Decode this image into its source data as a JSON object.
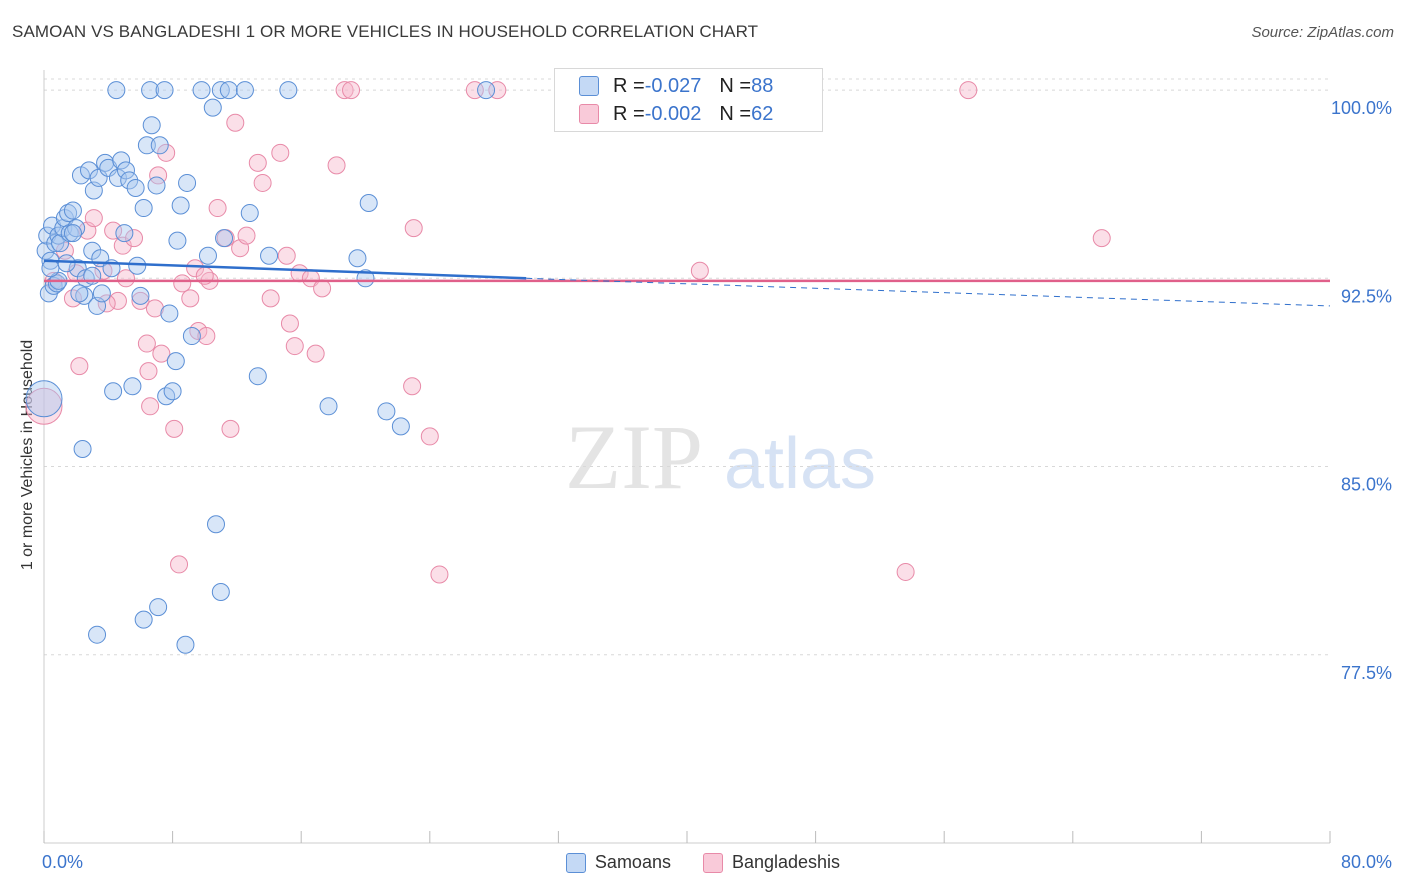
{
  "title": "SAMOAN VS BANGLADESHI 1 OR MORE VEHICLES IN HOUSEHOLD CORRELATION CHART",
  "source": "Source: ZipAtlas.com",
  "watermark": {
    "zip": "ZIP",
    "atlas": "atlas"
  },
  "legend_top": {
    "rows": [
      {
        "r_label": "R = ",
        "r_value": "-0.027",
        "n_label": "N = ",
        "n_value": "88"
      },
      {
        "r_label": "R = ",
        "r_value": "-0.002",
        "n_label": "N = ",
        "n_value": "62"
      }
    ]
  },
  "legend_bottom": {
    "samoans": "Samoans",
    "bangladeshis": "Bangladeshis"
  },
  "colors": {
    "samoan_fill": "#a9c8f0",
    "samoan_stroke": "#5b8fd6",
    "samoan_line": "#2f6fcc",
    "bangla_fill": "#f7b8cc",
    "bangla_stroke": "#e88aa8",
    "bangla_line": "#e0608a",
    "axis_text": "#3b74cc",
    "grid": "#d8d8d8"
  },
  "chart_data": {
    "type": "scatter",
    "title": "SAMOAN VS BANGLADESHI 1 OR MORE VEHICLES IN HOUSEHOLD CORRELATION CHART",
    "xlabel": "",
    "ylabel": "1 or more Vehicles in Household",
    "xlim": [
      0,
      80
    ],
    "ylim": [
      70,
      100.8
    ],
    "x_tick_labels": [
      "0.0%",
      "80.0%"
    ],
    "y_ticks": [
      77.5,
      85.0,
      92.5,
      100.0
    ],
    "y_tick_labels": [
      "77.5%",
      "85.0%",
      "92.5%",
      "100.0%"
    ],
    "grid": true,
    "legend_position": "top-center",
    "series": [
      {
        "name": "Samoans",
        "R": -0.027,
        "N": 88,
        "trend": {
          "x0": 0,
          "y0": 93.2,
          "x1": 30,
          "y1": 92.5,
          "dashed_to_x": 80,
          "dashed_y": 91.4
        },
        "points": [
          [
            0.0,
            87.7
          ],
          [
            0.1,
            93.6
          ],
          [
            0.2,
            94.2
          ],
          [
            0.3,
            91.9
          ],
          [
            0.4,
            93.2
          ],
          [
            0.5,
            94.6
          ],
          [
            0.6,
            92.2
          ],
          [
            0.7,
            93.9
          ],
          [
            0.8,
            92.3
          ],
          [
            0.9,
            94.2
          ],
          [
            1.0,
            93.9
          ],
          [
            1.2,
            94.5
          ],
          [
            1.3,
            94.9
          ],
          [
            1.5,
            95.1
          ],
          [
            1.6,
            94.3
          ],
          [
            1.8,
            95.2
          ],
          [
            2.0,
            94.5
          ],
          [
            2.1,
            92.9
          ],
          [
            2.3,
            96.6
          ],
          [
            2.5,
            91.8
          ],
          [
            2.6,
            92.5
          ],
          [
            2.8,
            96.8
          ],
          [
            3.0,
            93.6
          ],
          [
            3.1,
            96.0
          ],
          [
            3.3,
            91.4
          ],
          [
            3.4,
            96.5
          ],
          [
            3.5,
            93.3
          ],
          [
            3.6,
            91.9
          ],
          [
            3.8,
            97.1
          ],
          [
            4.0,
            96.9
          ],
          [
            4.2,
            92.9
          ],
          [
            4.5,
            100.0
          ],
          [
            4.6,
            96.5
          ],
          [
            4.8,
            97.2
          ],
          [
            5.0,
            94.3
          ],
          [
            5.1,
            96.8
          ],
          [
            5.3,
            96.4
          ],
          [
            5.5,
            88.2
          ],
          [
            5.7,
            96.1
          ],
          [
            6.0,
            91.8
          ],
          [
            6.2,
            95.3
          ],
          [
            6.4,
            97.8
          ],
          [
            6.6,
            100.0
          ],
          [
            6.7,
            98.6
          ],
          [
            7.0,
            96.2
          ],
          [
            7.2,
            97.8
          ],
          [
            7.5,
            100.0
          ],
          [
            7.6,
            87.8
          ],
          [
            7.8,
            91.1
          ],
          [
            8.0,
            88.0
          ],
          [
            8.2,
            89.2
          ],
          [
            8.3,
            94.0
          ],
          [
            8.5,
            95.4
          ],
          [
            8.8,
            77.9
          ],
          [
            8.9,
            96.3
          ],
          [
            9.2,
            90.2
          ],
          [
            9.8,
            100.0
          ],
          [
            10.2,
            93.4
          ],
          [
            10.5,
            99.3
          ],
          [
            11.0,
            100.0
          ],
          [
            11.2,
            94.1
          ],
          [
            11.5,
            100.0
          ],
          [
            12.5,
            100.0
          ],
          [
            12.8,
            95.1
          ],
          [
            13.3,
            88.6
          ],
          [
            14.0,
            93.4
          ],
          [
            15.2,
            100.0
          ],
          [
            17.7,
            87.4
          ],
          [
            19.5,
            93.3
          ],
          [
            20.0,
            92.5
          ],
          [
            20.2,
            95.5
          ],
          [
            21.3,
            87.2
          ],
          [
            22.2,
            86.6
          ],
          [
            27.5,
            100.0
          ],
          [
            2.4,
            85.7
          ],
          [
            3.3,
            78.3
          ],
          [
            6.2,
            78.9
          ],
          [
            7.1,
            79.4
          ],
          [
            10.7,
            82.7
          ],
          [
            11.0,
            80.0
          ],
          [
            4.3,
            88.0
          ],
          [
            1.4,
            93.1
          ],
          [
            0.9,
            92.4
          ],
          [
            2.2,
            91.9
          ],
          [
            3.0,
            92.6
          ],
          [
            5.8,
            93.0
          ],
          [
            1.8,
            94.3
          ],
          [
            0.4,
            92.9
          ]
        ]
      },
      {
        "name": "Bangladeshis",
        "R": -0.002,
        "N": 62,
        "trend": {
          "x0": 0,
          "y0": 92.4,
          "x1": 80,
          "y1": 92.4
        },
        "points": [
          [
            0.0,
            87.4
          ],
          [
            0.6,
            92.4
          ],
          [
            1.3,
            93.6
          ],
          [
            1.8,
            91.7
          ],
          [
            2.2,
            89.0
          ],
          [
            2.7,
            94.4
          ],
          [
            3.1,
            94.9
          ],
          [
            3.7,
            92.8
          ],
          [
            4.3,
            94.4
          ],
          [
            4.6,
            91.6
          ],
          [
            4.9,
            93.8
          ],
          [
            5.1,
            92.5
          ],
          [
            5.6,
            94.1
          ],
          [
            6.0,
            91.6
          ],
          [
            6.4,
            89.9
          ],
          [
            6.5,
            88.8
          ],
          [
            6.6,
            87.4
          ],
          [
            6.9,
            91.3
          ],
          [
            7.1,
            96.6
          ],
          [
            7.3,
            89.5
          ],
          [
            7.6,
            97.5
          ],
          [
            8.1,
            86.5
          ],
          [
            8.4,
            81.1
          ],
          [
            8.6,
            92.3
          ],
          [
            9.1,
            91.7
          ],
          [
            9.4,
            92.9
          ],
          [
            9.6,
            90.4
          ],
          [
            10.1,
            90.2
          ],
          [
            10.3,
            92.4
          ],
          [
            10.8,
            95.3
          ],
          [
            11.3,
            94.1
          ],
          [
            11.6,
            86.5
          ],
          [
            11.9,
            98.7
          ],
          [
            12.2,
            93.7
          ],
          [
            12.6,
            94.2
          ],
          [
            13.3,
            97.1
          ],
          [
            13.6,
            96.3
          ],
          [
            14.1,
            91.7
          ],
          [
            14.7,
            97.5
          ],
          [
            15.1,
            93.4
          ],
          [
            15.3,
            90.7
          ],
          [
            15.6,
            89.8
          ],
          [
            15.9,
            92.7
          ],
          [
            16.6,
            92.5
          ],
          [
            16.9,
            89.5
          ],
          [
            17.3,
            92.1
          ],
          [
            18.2,
            97.0
          ],
          [
            18.7,
            100.0
          ],
          [
            19.1,
            100.0
          ],
          [
            22.9,
            88.2
          ],
          [
            23.0,
            94.5
          ],
          [
            24.0,
            86.2
          ],
          [
            24.6,
            80.7
          ],
          [
            26.8,
            100.0
          ],
          [
            28.2,
            100.0
          ],
          [
            40.8,
            92.8
          ],
          [
            53.6,
            80.8
          ],
          [
            57.5,
            100.0
          ],
          [
            65.8,
            94.1
          ],
          [
            2.0,
            92.7
          ],
          [
            3.9,
            91.5
          ],
          [
            10.0,
            92.6
          ]
        ]
      }
    ]
  }
}
